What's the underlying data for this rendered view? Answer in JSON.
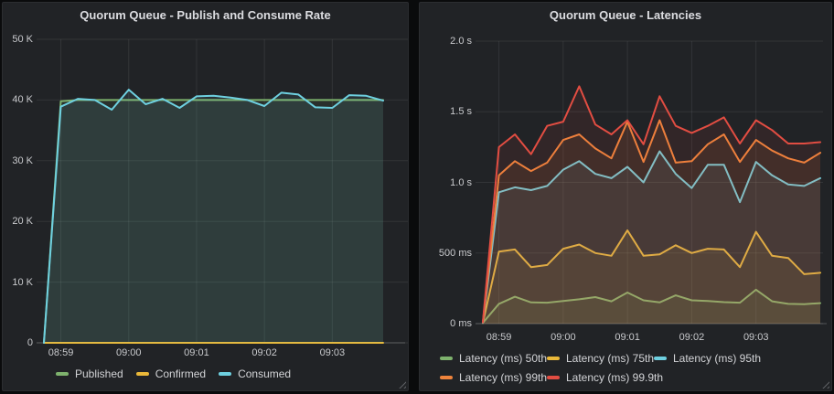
{
  "theme": {
    "page_bg": "#0a0b0c",
    "panel_bg": "#212326",
    "grid_color": "rgba(255,255,255,0.08)",
    "axis_line_color": "rgba(255,255,255,0.22)",
    "text_color": "#c9cacd",
    "title_color": "#dcdde1",
    "fill_opacity": 0.09
  },
  "chart_data": [
    {
      "type": "area",
      "title": "Quorum Queue - Publish and Consume Rate",
      "ylim": [
        0,
        50000
      ],
      "y_ticks": [
        {
          "value": 0,
          "label": "0"
        },
        {
          "value": 10000,
          "label": "10 K"
        },
        {
          "value": 20000,
          "label": "20 K"
        },
        {
          "value": 30000,
          "label": "30 K"
        },
        {
          "value": 40000,
          "label": "40 K"
        },
        {
          "value": 50000,
          "label": "50 K"
        }
      ],
      "x_ticks": [
        {
          "index": 1,
          "label": "08:59"
        },
        {
          "index": 5,
          "label": "09:00"
        },
        {
          "index": 9,
          "label": "09:01"
        },
        {
          "index": 13,
          "label": "09:02"
        },
        {
          "index": 17,
          "label": "09:03"
        }
      ],
      "x_interval_seconds": 15,
      "grid": true,
      "legend_position": "bottom",
      "series": [
        {
          "name": "Published",
          "color": "#7EB26D",
          "values": [
            0,
            39800,
            40000,
            40000,
            40000,
            40000,
            40000,
            40000,
            40000,
            40000,
            40000,
            40000,
            40000,
            40000,
            40000,
            40000,
            40000,
            40000,
            40000,
            40000,
            40000
          ]
        },
        {
          "name": "Confirmed",
          "color": "#EAB839",
          "values": [
            0,
            0,
            0,
            0,
            0,
            0,
            0,
            0,
            0,
            0,
            0,
            0,
            0,
            0,
            0,
            0,
            0,
            0,
            0,
            0,
            0
          ]
        },
        {
          "name": "Consumed",
          "color": "#6ED0E0",
          "values": [
            0,
            38900,
            40200,
            40000,
            38400,
            41700,
            39300,
            40200,
            38700,
            40600,
            40700,
            40400,
            40000,
            39000,
            41200,
            40900,
            38800,
            38700,
            40800,
            40700,
            39900
          ]
        }
      ]
    },
    {
      "type": "area",
      "title": "Quorum Queue - Latencies",
      "ylim": [
        0,
        2000
      ],
      "y_ticks": [
        {
          "value": 0,
          "label": "0 ms"
        },
        {
          "value": 500,
          "label": "500 ms"
        },
        {
          "value": 1000,
          "label": "1.0 s"
        },
        {
          "value": 1500,
          "label": "1.5 s"
        },
        {
          "value": 2000,
          "label": "2.0 s"
        }
      ],
      "x_ticks": [
        {
          "index": 1,
          "label": "08:59"
        },
        {
          "index": 5,
          "label": "09:00"
        },
        {
          "index": 9,
          "label": "09:01"
        },
        {
          "index": 13,
          "label": "09:02"
        },
        {
          "index": 17,
          "label": "09:03"
        }
      ],
      "x_interval_seconds": 15,
      "grid": true,
      "legend_position": "bottom",
      "series": [
        {
          "name": "Latency (ms) 50th",
          "color": "#7EB26D",
          "values": [
            5,
            140,
            190,
            150,
            148,
            160,
            172,
            188,
            158,
            220,
            165,
            150,
            200,
            165,
            160,
            152,
            148,
            240,
            158,
            140,
            138,
            145
          ]
        },
        {
          "name": "Latency (ms) 75th",
          "color": "#EAB839",
          "values": [
            5,
            510,
            525,
            400,
            415,
            530,
            560,
            500,
            480,
            660,
            480,
            490,
            555,
            500,
            530,
            525,
            400,
            650,
            480,
            465,
            350,
            360
          ]
        },
        {
          "name": "Latency (ms) 95th",
          "color": "#6ED0E0",
          "values": [
            5,
            930,
            965,
            945,
            975,
            1090,
            1150,
            1060,
            1030,
            1110,
            1000,
            1220,
            1060,
            960,
            1125,
            1125,
            860,
            1145,
            1050,
            985,
            975,
            1030
          ]
        },
        {
          "name": "Latency (ms) 99th",
          "color": "#EF843C",
          "values": [
            8,
            1050,
            1150,
            1080,
            1140,
            1300,
            1340,
            1240,
            1170,
            1430,
            1145,
            1440,
            1140,
            1150,
            1270,
            1340,
            1145,
            1300,
            1225,
            1170,
            1140,
            1210
          ]
        },
        {
          "name": "Latency (ms) 99.9th",
          "color": "#E24D42",
          "values": [
            10,
            1250,
            1340,
            1200,
            1400,
            1430,
            1680,
            1410,
            1340,
            1440,
            1270,
            1610,
            1400,
            1350,
            1400,
            1460,
            1275,
            1440,
            1370,
            1275,
            1275,
            1285
          ]
        }
      ]
    }
  ]
}
